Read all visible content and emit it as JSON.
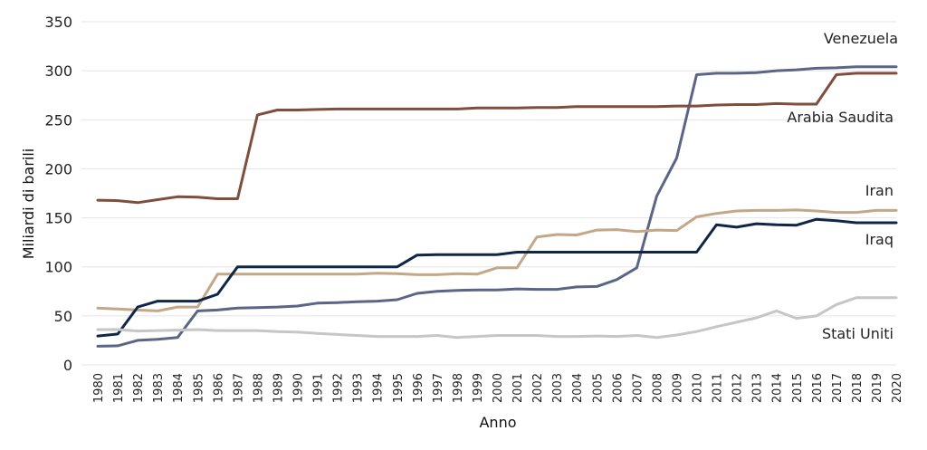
{
  "chart_data": {
    "type": "line",
    "title": "",
    "xlabel": "Anno",
    "ylabel": "Miliardi di barili",
    "ylim": [
      0,
      350
    ],
    "yticks": [
      0,
      50,
      100,
      150,
      200,
      250,
      300,
      350
    ],
    "grid": "horizontal",
    "x": [
      1980,
      1981,
      1982,
      1983,
      1984,
      1985,
      1986,
      1987,
      1988,
      1989,
      1990,
      1991,
      1992,
      1993,
      1994,
      1995,
      1996,
      1997,
      1998,
      1999,
      2000,
      2001,
      2002,
      2003,
      2004,
      2005,
      2006,
      2007,
      2008,
      2009,
      2010,
      2011,
      2012,
      2013,
      2014,
      2015,
      2016,
      2017,
      2018,
      2019,
      2020
    ],
    "series": [
      {
        "name": "Venezuela",
        "color": "#5b6686",
        "values": [
          19,
          19.5,
          25,
          26,
          28,
          55,
          56,
          58,
          58.5,
          59,
          60,
          63,
          63.5,
          64.5,
          65,
          66.5,
          73,
          75,
          76,
          76.5,
          76.5,
          77.5,
          77,
          77,
          79.5,
          80,
          87,
          99,
          172,
          211,
          296,
          297.5,
          297.5,
          298,
          300,
          301,
          302.5,
          303,
          304,
          304,
          304
        ]
      },
      {
        "name": "Arabia Saudita",
        "color": "#7e4e3e",
        "values": [
          168,
          167.5,
          165.5,
          168.5,
          171.5,
          171,
          169.5,
          169.5,
          255,
          260,
          260,
          260.5,
          261,
          261,
          261,
          261,
          261,
          261,
          261,
          262,
          262,
          262,
          262.5,
          262.5,
          263.5,
          263.5,
          263.5,
          263.5,
          263.5,
          264,
          264,
          265,
          265.5,
          265.5,
          266.5,
          266,
          266,
          296,
          297.5,
          297.5,
          297.5
        ]
      },
      {
        "name": "Iran",
        "color": "#c2a886",
        "values": [
          58,
          57,
          56,
          55,
          59,
          59,
          92.5,
          92.5,
          92.5,
          92.5,
          92.5,
          92.5,
          92.5,
          92.5,
          93.5,
          93,
          92,
          92,
          93,
          92.5,
          99,
          99,
          130.5,
          133,
          132.5,
          137.5,
          138,
          136,
          137.5,
          137,
          151,
          154.5,
          157,
          157.5,
          157.5,
          158,
          157,
          155.5,
          155.5,
          157.5,
          157.5
        ]
      },
      {
        "name": "Iraq",
        "color": "#0f2647",
        "values": [
          29.5,
          31.5,
          59,
          65,
          65,
          65,
          72,
          100,
          100,
          100,
          100,
          100,
          100,
          100,
          100,
          100,
          112,
          112.5,
          112.5,
          112.5,
          112.5,
          115,
          115,
          115,
          115,
          115,
          115,
          115,
          115,
          115,
          115,
          143,
          140.5,
          144,
          143,
          142.5,
          148.5,
          147,
          145,
          145,
          145
        ]
      },
      {
        "name": "Stati Uniti",
        "color": "#c6c6c6",
        "values": [
          36,
          36,
          34.5,
          35,
          35.5,
          36,
          35,
          35,
          35,
          34,
          33.5,
          32,
          31,
          30,
          29,
          29,
          29,
          30,
          28,
          29,
          30,
          30,
          30,
          29,
          29,
          29.5,
          29,
          30,
          28,
          30.5,
          34,
          39,
          43.5,
          48,
          55,
          47.5,
          50,
          61.5,
          68.5,
          68.5,
          68.5
        ]
      }
    ]
  }
}
